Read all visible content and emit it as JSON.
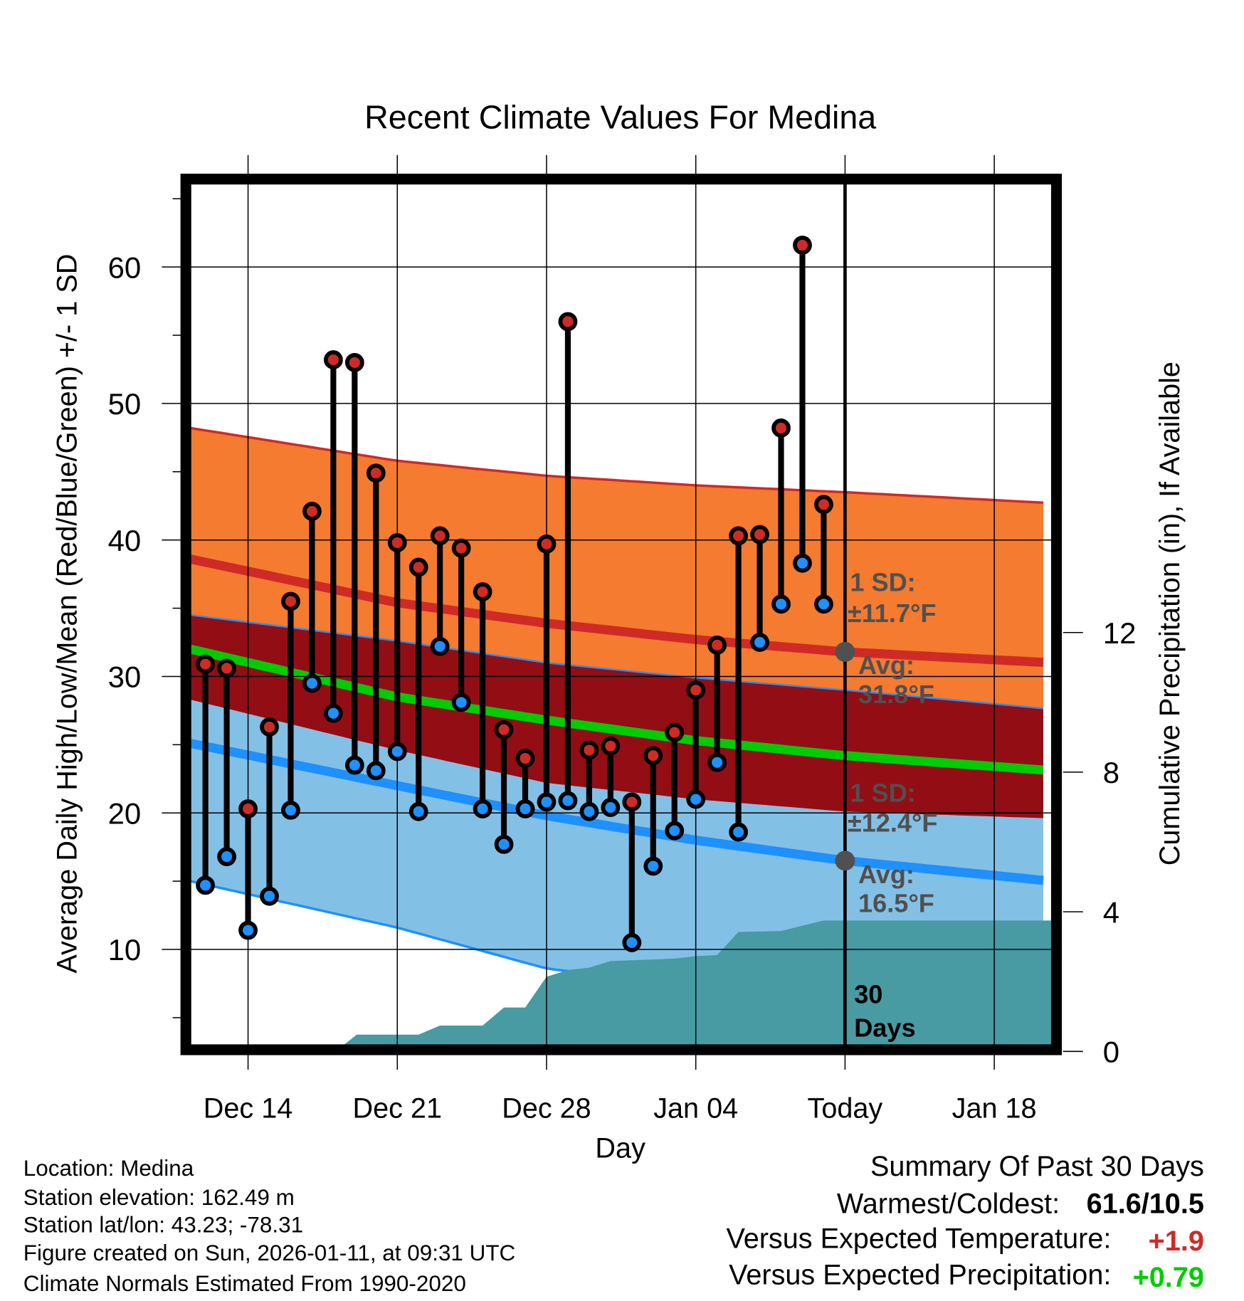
{
  "chart_data": {
    "type": "line",
    "title": "Recent Climate Values For Medina",
    "xlabel": "Day",
    "ylabel": "Average Daily High/Low/Mean (Red/Blue/Green) +/- 1 SD",
    "y2label": "Cumulative Precipitation (in), If Available",
    "ylim": [
      3,
      66.1
    ],
    "y_ticks": [
      10,
      20,
      30,
      40,
      50,
      60
    ],
    "y2_ticks": [
      0,
      4,
      8,
      12
    ],
    "x_ticks": [
      {
        "label": "Dec 14",
        "day": 0
      },
      {
        "label": "Dec 21",
        "day": 7
      },
      {
        "label": "Dec 28",
        "day": 14
      },
      {
        "label": "Jan 04",
        "day": 21
      },
      {
        "label": "Today",
        "day": 28
      },
      {
        "label": "Jan 18",
        "day": 35
      }
    ],
    "xlim_days_from_dec14": [
      -2.7,
      37.7
    ],
    "grid": true,
    "days": [
      "Dec 12",
      "Dec 13",
      "Dec 14",
      "Dec 15",
      "Dec 16",
      "Dec 17",
      "Dec 18",
      "Dec 19",
      "Dec 20",
      "Dec 21",
      "Dec 22",
      "Dec 23",
      "Dec 24",
      "Dec 25",
      "Dec 26",
      "Dec 27",
      "Dec 28",
      "Dec 29",
      "Dec 30",
      "Dec 31",
      "Jan 01",
      "Jan 02",
      "Jan 03",
      "Jan 04",
      "Jan 05",
      "Jan 06",
      "Jan 07",
      "Jan 08",
      "Jan 09",
      "Jan 10"
    ],
    "day_offsets_start": -2,
    "highs": [
      30.9,
      30.6,
      20.3,
      26.3,
      35.5,
      42.1,
      53.2,
      53.0,
      44.9,
      39.8,
      38.0,
      40.3,
      39.4,
      36.2,
      26.1,
      24.0,
      39.7,
      56.0,
      24.6,
      24.9,
      20.8,
      24.2,
      25.9,
      29.0,
      32.3,
      40.3,
      40.4,
      48.2,
      61.6,
      42.6
    ],
    "lows": [
      14.7,
      16.8,
      11.4,
      13.9,
      20.2,
      29.5,
      27.3,
      23.5,
      23.1,
      24.5,
      20.1,
      32.2,
      28.1,
      20.3,
      17.7,
      20.3,
      20.8,
      20.9,
      20.1,
      20.4,
      10.5,
      16.1,
      18.7,
      21.0,
      23.7,
      18.6,
      32.5,
      35.3,
      38.3,
      35.3
    ],
    "normals": {
      "days": [
        -2.7,
        7,
        14,
        21,
        28,
        37.7
      ],
      "high_upper": [
        48.2,
        45.8,
        44.7,
        44.0,
        43.5,
        42.7
      ],
      "high_mean": [
        38.6,
        35.4,
        33.9,
        32.7,
        31.8,
        31.0
      ],
      "high_lower": [
        28.3,
        24.6,
        22.2,
        21.0,
        20.1,
        19.6
      ],
      "low_upper": [
        34.5,
        32.6,
        31.0,
        29.9,
        29.0,
        27.6
      ],
      "low_mean": [
        25.1,
        22.0,
        19.8,
        18.0,
        16.5,
        15.0
      ],
      "low_lower": [
        15.0,
        11.6,
        8.6,
        7.3,
        4.1,
        3.6
      ],
      "mean": [
        32.0,
        28.5,
        26.8,
        25.3,
        24.2,
        23.1
      ]
    },
    "precip_cumulative": {
      "days": [
        -2.7,
        4.1,
        5.1,
        8.0,
        9.0,
        11.0,
        12.0,
        13.0,
        14.0,
        15,
        16,
        17,
        18,
        20,
        21,
        22,
        23,
        25,
        27,
        37.7
      ],
      "values": [
        0,
        0,
        0.48,
        0.48,
        0.74,
        0.74,
        1.26,
        1.26,
        2.14,
        2.33,
        2.4,
        2.59,
        2.61,
        2.66,
        2.73,
        2.76,
        3.42,
        3.45,
        3.75,
        3.75
      ]
    },
    "annotations": {
      "high_sd_label": "1 SD:",
      "high_sd_value": "±11.7°F",
      "high_avg_label": "Avg:",
      "high_avg_value": "31.8°F",
      "high_avg": 31.8,
      "low_sd_label": "1 SD:",
      "low_sd_value": "±12.4°F",
      "low_avg_label": "Avg:",
      "low_avg_value": "16.5°F",
      "low_avg": 16.5,
      "days_count": "30",
      "days_word": "Days"
    },
    "colors": {
      "high_band": "#f47b30",
      "overlap_band": "#930d15",
      "low_band": "#83c0e6",
      "high_line": "#d02a26",
      "low_line": "#1e90ff",
      "mean_line": "#00cc00",
      "precip": "#489aa3",
      "annotation": "#505050"
    }
  },
  "info": {
    "location": "Location: Medina",
    "elevation": "Station elevation: 162.49 m",
    "latlon": "Station lat/lon: 43.23; -78.31",
    "created": "Figure created on Sun, 2026-01-11, at 09:31 UTC",
    "normals": "Climate Normals Estimated From 1990-2020"
  },
  "summary": {
    "title": "Summary Of Past 30 Days",
    "warm_cold_label": "Warmest/Coldest:",
    "warm_cold_value": "61.6/10.5",
    "temp_label": "Versus Expected Temperature:",
    "temp_value": "+1.9",
    "precip_label": "Versus Expected Precipitation:",
    "precip_value": "+0.79",
    "temp_color": "#d02a26",
    "precip_color": "#00cc00"
  }
}
